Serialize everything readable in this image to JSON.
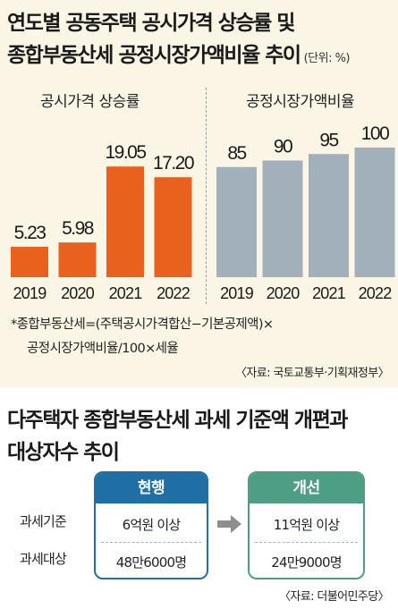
{
  "header": {
    "title_line1": "연도별 공동주택 공시가격 상승률 및",
    "title_line2": "종합부동산세 공정시장가액비율 추이",
    "unit": "(단위: %)"
  },
  "chart_data": [
    {
      "type": "bar",
      "title": "공시가격 상승률",
      "categories": [
        "2019",
        "2020",
        "2021",
        "2022"
      ],
      "values": [
        5.23,
        5.98,
        19.05,
        17.2
      ],
      "value_labels": [
        "5.23",
        "5.98",
        "19.05",
        "17.20"
      ],
      "color": "#e8621e",
      "ylim": [
        0,
        25
      ]
    },
    {
      "type": "bar",
      "title": "공정시장가액비율",
      "categories": [
        "2019",
        "2020",
        "2021",
        "2022"
      ],
      "values": [
        85,
        90,
        95,
        100
      ],
      "value_labels": [
        "85",
        "90",
        "95",
        "100"
      ],
      "color": "#a2b0bc",
      "ylim": [
        0,
        130
      ]
    }
  ],
  "notes": {
    "formula_line1": "*종합부동산세=(주택공시가격합산−기본공제액)×",
    "formula_line2": "공정시장가액비율/100×세율",
    "source1": "〈자료: 국토교통부·기획재정부〉"
  },
  "reform": {
    "title_line1": "다주택자 종합부동산세 과세 기준액 개편과",
    "title_line2": "대상자수 추이",
    "row_labels": [
      "과세기준",
      "과세대상"
    ],
    "current": {
      "header": "현행",
      "values": [
        "6억원 이상",
        "48만6000명"
      ]
    },
    "reformed": {
      "header": "개선",
      "values": [
        "11억원 이상",
        "24만9000명"
      ]
    },
    "arrow_color": "#8e8e8e",
    "source": "〈자료: 더불어민주당〉"
  }
}
